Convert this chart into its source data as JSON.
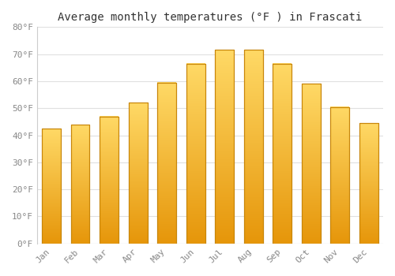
{
  "title": "Average monthly temperatures (°F ) in Frascati",
  "months": [
    "Jan",
    "Feb",
    "Mar",
    "Apr",
    "May",
    "Jun",
    "Jul",
    "Aug",
    "Sep",
    "Oct",
    "Nov",
    "Dec"
  ],
  "values": [
    42.5,
    44,
    47,
    52,
    59.5,
    66.5,
    71.5,
    71.5,
    66.5,
    59,
    50.5,
    44.5
  ],
  "bar_color_top": "#FFD966",
  "bar_color_bottom": "#E6960A",
  "bar_edge_color": "#C8860A",
  "ylim": [
    0,
    80
  ],
  "yticks": [
    0,
    10,
    20,
    30,
    40,
    50,
    60,
    70,
    80
  ],
  "ytick_labels": [
    "0°F",
    "10°F",
    "20°F",
    "30°F",
    "40°F",
    "50°F",
    "60°F",
    "70°F",
    "80°F"
  ],
  "background_color": "#FFFFFF",
  "plot_bg_color": "#FFFFFF",
  "grid_color": "#E0E0E0",
  "title_fontsize": 10,
  "tick_fontsize": 8,
  "font_family": "monospace",
  "bar_width": 0.65
}
